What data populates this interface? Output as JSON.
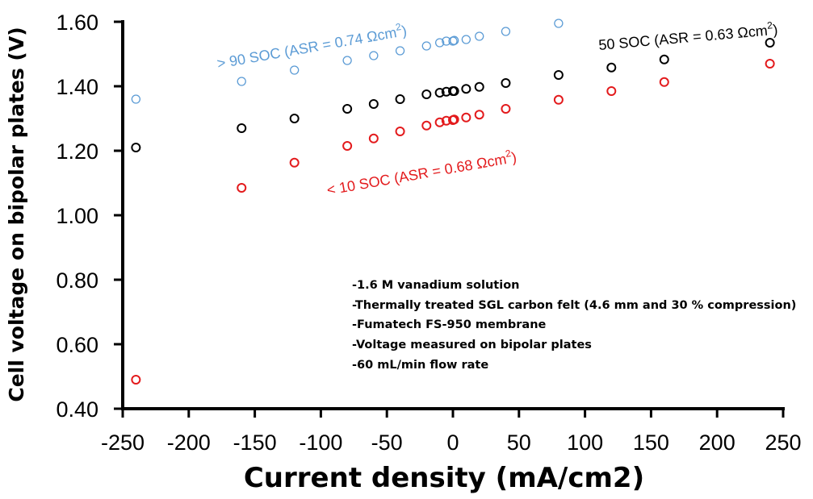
{
  "chart_data": {
    "type": "scatter",
    "title": "",
    "xlabel": "Current density (mA/cm2)",
    "ylabel": "Cell voltage on bipolar plates (V)",
    "xlim": [
      -250,
      250
    ],
    "ylim": [
      0.4,
      1.6
    ],
    "x_ticks": [
      "-250",
      "-200",
      "-150",
      "-100",
      "-50",
      "0",
      "50",
      "100",
      "150",
      "200",
      "250"
    ],
    "y_ticks": [
      "0.40",
      "0.60",
      "0.80",
      "1.00",
      "1.20",
      "1.40",
      "1.60"
    ],
    "grid": false,
    "series": [
      {
        "name": "> 90 SOC",
        "color": "#5b9bd5",
        "x": [
          -240,
          -160,
          -120,
          -80,
          -60,
          -40,
          -20,
          -10,
          -5,
          0,
          1,
          10,
          20,
          40,
          80
        ],
        "y": [
          1.36,
          1.415,
          1.45,
          1.48,
          1.495,
          1.51,
          1.525,
          1.535,
          1.54,
          1.54,
          1.542,
          1.545,
          1.555,
          1.57,
          1.595
        ]
      },
      {
        "name": "50 SOC",
        "color": "#000000",
        "x": [
          -240,
          -160,
          -120,
          -80,
          -60,
          -40,
          -20,
          -10,
          -5,
          0,
          1,
          10,
          20,
          40,
          80,
          120,
          160,
          240
        ],
        "y": [
          1.21,
          1.27,
          1.3,
          1.33,
          1.345,
          1.36,
          1.375,
          1.38,
          1.383,
          1.385,
          1.385,
          1.392,
          1.398,
          1.41,
          1.435,
          1.458,
          1.483,
          1.535
        ]
      },
      {
        "name": "< 10 SOC",
        "color": "#e31a1c",
        "x": [
          -240,
          -160,
          -120,
          -80,
          -60,
          -40,
          -20,
          -10,
          -5,
          0,
          1,
          10,
          20,
          40,
          80,
          120,
          160,
          240
        ],
        "y": [
          0.49,
          1.085,
          1.163,
          1.215,
          1.238,
          1.26,
          1.278,
          1.288,
          1.293,
          1.295,
          1.297,
          1.303,
          1.312,
          1.33,
          1.358,
          1.385,
          1.413,
          1.47
        ]
      }
    ],
    "annotations": [
      {
        "text_main": "> 90 SOC (ASR = 0.74 Ωcm",
        "sup": "2",
        "close": ")",
        "color": "#5b9bd5"
      },
      {
        "text_main": "50 SOC (ASR = 0.63 Ωcm",
        "sup": "2",
        "close": ")",
        "color": "#000000"
      },
      {
        "text_main": "< 10 SOC (ASR = 0.68 Ωcm",
        "sup": "2",
        "close": ")",
        "color": "#e31a1c"
      }
    ],
    "notes": [
      "-1.6 M vanadium solution",
      "-Thermally treated SGL carbon felt (4.6 mm and 30 % compression)",
      "-Fumatech FS-950 membrane",
      "-Voltage measured on bipolar plates",
      "-60 mL/min flow rate"
    ]
  }
}
